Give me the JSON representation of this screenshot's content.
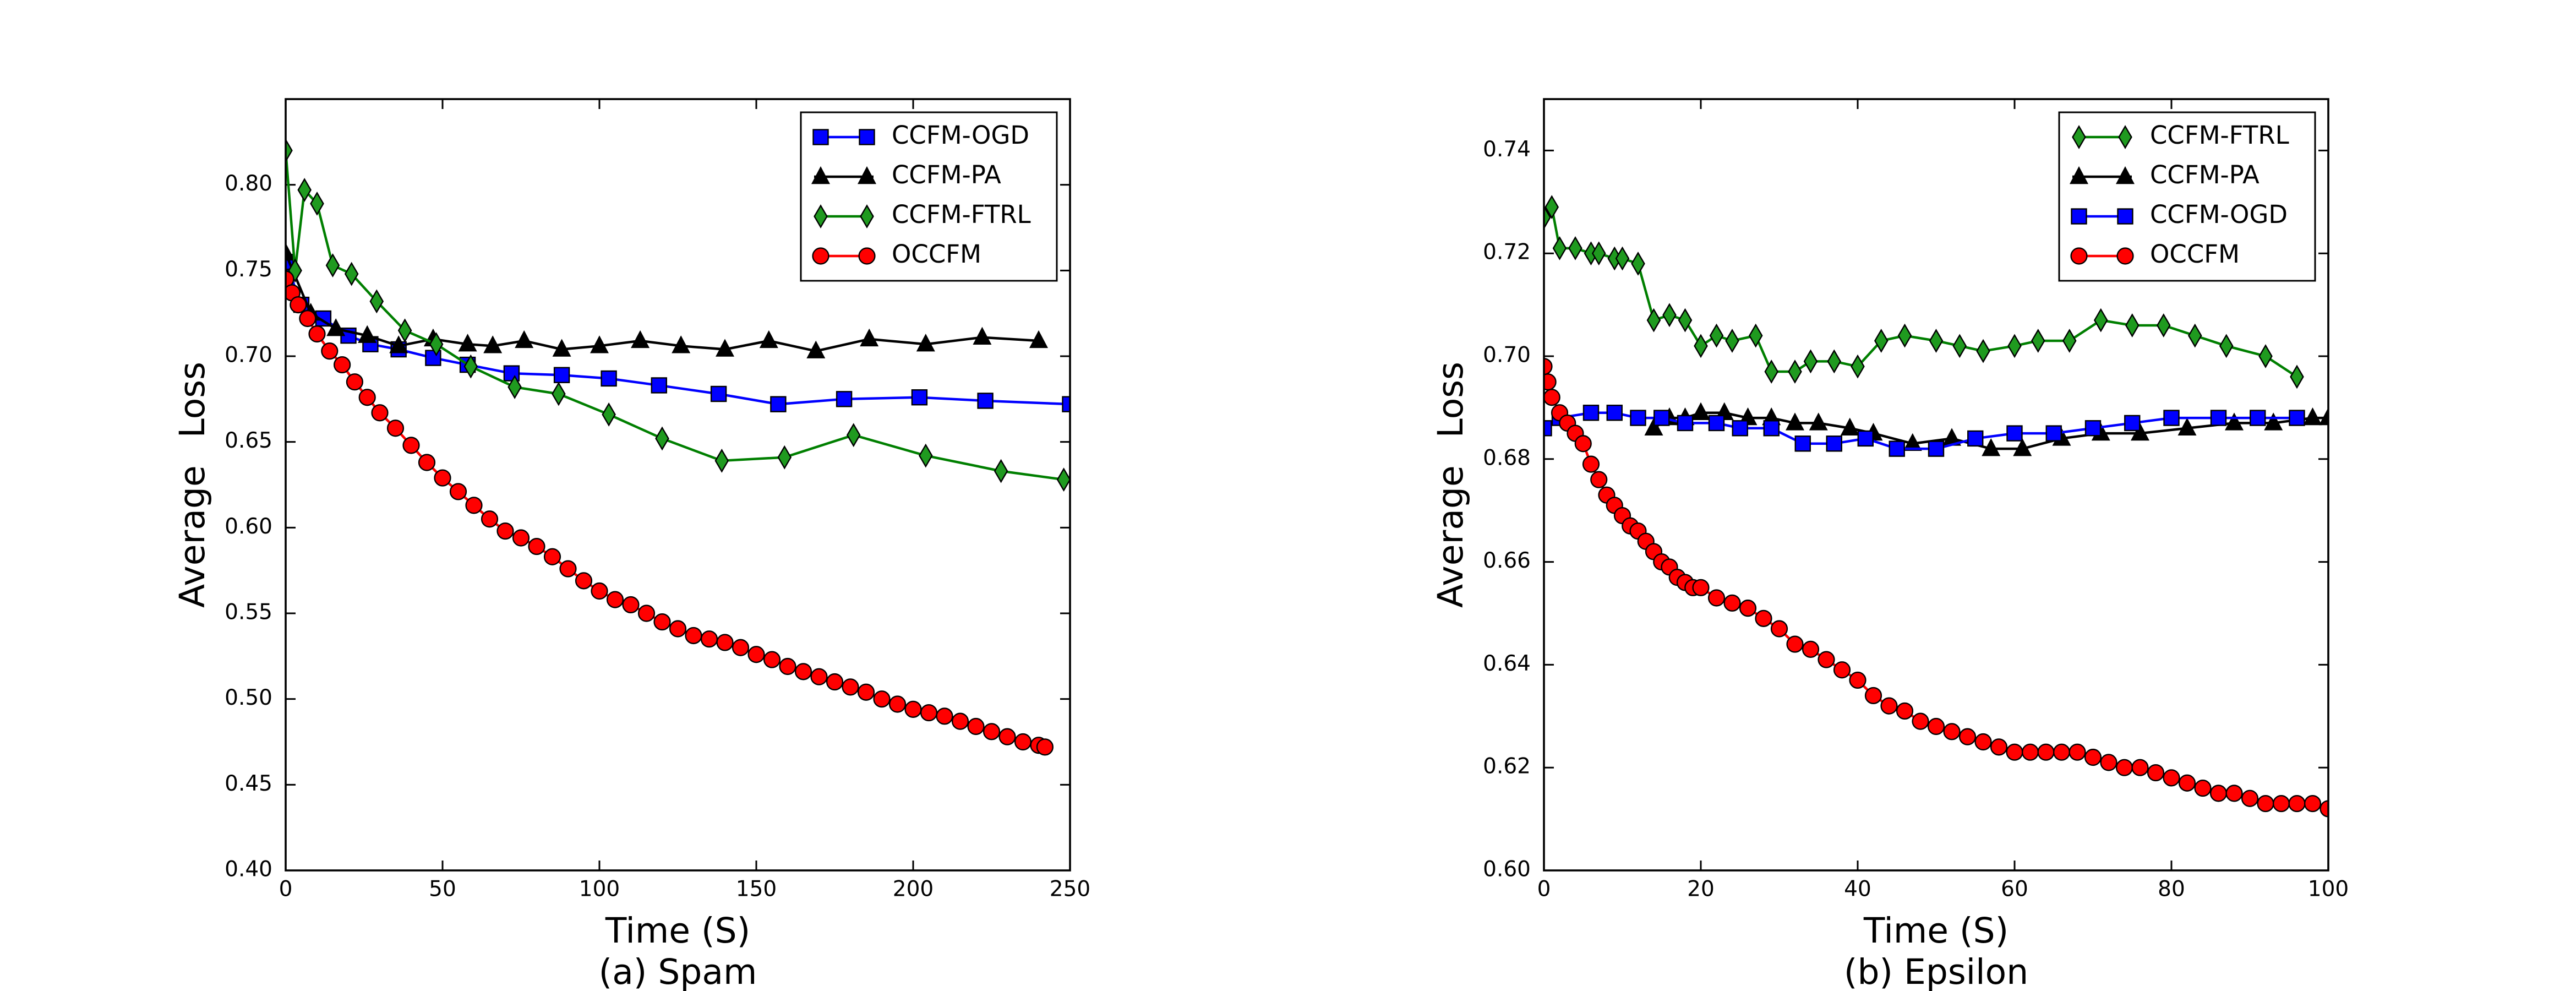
{
  "chart_data": [
    {
      "type": "line",
      "xlabel": "Time (S)",
      "ylabel": "Average Loss",
      "caption": "(a) Spam",
      "xlim": [
        0,
        250
      ],
      "ylim": [
        0.4,
        0.85
      ],
      "xticks": [
        0,
        50,
        100,
        150,
        200,
        250
      ],
      "yticks": [
        {
          "value": 0.4,
          "label": "0.40"
        },
        0.45,
        {
          "value": 0.5,
          "label": "0.50"
        },
        0.55,
        {
          "value": 0.6,
          "label": "0.60"
        },
        0.65,
        {
          "value": 0.7,
          "label": "0.70"
        },
        0.75,
        {
          "value": 0.8,
          "label": "0.80"
        }
      ],
      "legend": "upper right",
      "grid": false,
      "series": [
        {
          "name": "CCFM-OGD",
          "color": "#0000ff",
          "marker": "square",
          "x": [
            0,
            5,
            12,
            20,
            27,
            36,
            47,
            58,
            72,
            88,
            103,
            119,
            138,
            157,
            178,
            202,
            223,
            250
          ],
          "values": [
            0.755,
            0.73,
            0.722,
            0.712,
            0.707,
            0.704,
            0.699,
            0.695,
            0.69,
            0.689,
            0.687,
            0.683,
            0.678,
            0.672,
            0.675,
            0.676,
            0.674,
            0.672
          ]
        },
        {
          "name": "CCFM-PA",
          "color": "#000000",
          "marker": "triangle",
          "x": [
            0,
            8,
            16,
            26,
            36,
            47,
            58,
            66,
            76,
            88,
            100,
            113,
            126,
            140,
            154,
            169,
            186,
            204,
            222,
            240
          ],
          "values": [
            0.76,
            0.725,
            0.716,
            0.712,
            0.706,
            0.71,
            0.707,
            0.706,
            0.709,
            0.704,
            0.706,
            0.709,
            0.706,
            0.704,
            0.709,
            0.703,
            0.71,
            0.707,
            0.711,
            0.709
          ]
        },
        {
          "name": "CCFM-FTRL",
          "color": "#007f00",
          "marker": "diamond",
          "x": [
            0,
            3,
            6,
            10,
            15,
            21,
            29,
            38,
            48,
            59,
            73,
            87,
            103,
            120,
            139,
            159,
            181,
            204,
            228,
            248
          ],
          "values": [
            0.82,
            0.75,
            0.797,
            0.789,
            0.753,
            0.748,
            0.732,
            0.715,
            0.707,
            0.694,
            0.682,
            0.678,
            0.666,
            0.652,
            0.639,
            0.641,
            0.654,
            0.642,
            0.633,
            0.628
          ]
        },
        {
          "name": "OCCFM",
          "color": "#ff0000",
          "marker": "circle",
          "x": [
            0,
            2,
            4,
            7,
            10,
            14,
            18,
            22,
            26,
            30,
            35,
            40,
            45,
            50,
            55,
            60,
            65,
            70,
            75,
            80,
            85,
            90,
            95,
            100,
            105,
            110,
            115,
            120,
            125,
            130,
            135,
            140,
            145,
            150,
            155,
            160,
            165,
            170,
            175,
            180,
            185,
            190,
            195,
            200,
            205,
            210,
            215,
            220,
            225,
            230,
            235,
            240,
            242
          ],
          "values": [
            0.745,
            0.737,
            0.73,
            0.722,
            0.713,
            0.703,
            0.695,
            0.685,
            0.676,
            0.667,
            0.658,
            0.648,
            0.638,
            0.629,
            0.621,
            0.613,
            0.605,
            0.598,
            0.594,
            0.589,
            0.583,
            0.576,
            0.569,
            0.563,
            0.558,
            0.555,
            0.55,
            0.545,
            0.541,
            0.537,
            0.535,
            0.533,
            0.53,
            0.526,
            0.523,
            0.519,
            0.516,
            0.513,
            0.51,
            0.507,
            0.504,
            0.5,
            0.497,
            0.494,
            0.492,
            0.49,
            0.487,
            0.484,
            0.481,
            0.478,
            0.475,
            0.473,
            0.472
          ]
        }
      ]
    },
    {
      "type": "line",
      "xlabel": "Time (S)",
      "ylabel": "Average Loss",
      "caption": "(b) Epsilon",
      "xlim": [
        0,
        100
      ],
      "ylim": [
        0.6,
        0.75
      ],
      "xticks": [
        0,
        20,
        40,
        60,
        80,
        100
      ],
      "yticks": [
        {
          "value": 0.6,
          "label": "0.60"
        },
        0.62,
        0.64,
        0.66,
        0.68,
        {
          "value": 0.7,
          "label": "0.70"
        },
        0.72,
        0.74
      ],
      "legend": "upper right",
      "grid": false,
      "series": [
        {
          "name": "CCFM-FTRL",
          "color": "#007f00",
          "marker": "diamond",
          "x": [
            0,
            1,
            2,
            4,
            6,
            7,
            9,
            10,
            12,
            14,
            16,
            18,
            20,
            22,
            24,
            27,
            29,
            32,
            34,
            37,
            40,
            43,
            46,
            50,
            53,
            56,
            60,
            63,
            67,
            71,
            75,
            79,
            83,
            87,
            92,
            96
          ],
          "values": [
            0.727,
            0.729,
            0.721,
            0.721,
            0.72,
            0.72,
            0.719,
            0.719,
            0.718,
            0.707,
            0.708,
            0.707,
            0.702,
            0.704,
            0.703,
            0.704,
            0.697,
            0.697,
            0.699,
            0.699,
            0.698,
            0.703,
            0.704,
            0.703,
            0.702,
            0.701,
            0.702,
            0.703,
            0.703,
            0.707,
            0.706,
            0.706,
            0.704,
            0.702,
            0.7,
            0.696
          ]
        },
        {
          "name": "CCFM-PA",
          "color": "#000000",
          "marker": "triangle",
          "x": [
            14,
            16,
            18,
            20,
            23,
            26,
            29,
            32,
            35,
            39,
            42,
            47,
            52,
            57,
            61,
            66,
            71,
            76,
            82,
            88,
            93,
            98,
            100
          ],
          "values": [
            0.686,
            0.688,
            0.688,
            0.689,
            0.689,
            0.688,
            0.688,
            0.687,
            0.687,
            0.686,
            0.685,
            0.683,
            0.684,
            0.682,
            0.682,
            0.684,
            0.685,
            0.685,
            0.686,
            0.687,
            0.687,
            0.688,
            0.688
          ]
        },
        {
          "name": "CCFM-OGD",
          "color": "#0000ff",
          "marker": "square",
          "x": [
            0,
            2,
            6,
            9,
            12,
            15,
            18,
            22,
            25,
            29,
            33,
            37,
            41,
            45,
            50,
            55,
            60,
            65,
            70,
            75,
            80,
            86,
            91,
            96
          ],
          "values": [
            0.686,
            0.688,
            0.689,
            0.689,
            0.688,
            0.688,
            0.687,
            0.687,
            0.686,
            0.686,
            0.683,
            0.683,
            0.684,
            0.682,
            0.682,
            0.684,
            0.685,
            0.685,
            0.686,
            0.687,
            0.688,
            0.688,
            0.688,
            0.688
          ]
        },
        {
          "name": "OCCFM",
          "color": "#ff0000",
          "marker": "circle",
          "x": [
            0,
            0.5,
            1,
            2,
            3,
            4,
            5,
            6,
            7,
            8,
            9,
            10,
            11,
            12,
            13,
            14,
            15,
            16,
            17,
            18,
            19,
            20,
            22,
            24,
            26,
            28,
            30,
            32,
            34,
            36,
            38,
            40,
            42,
            44,
            46,
            48,
            50,
            52,
            54,
            56,
            58,
            60,
            62,
            64,
            66,
            68,
            70,
            72,
            74,
            76,
            78,
            80,
            82,
            84,
            86,
            88,
            90,
            92,
            94,
            96,
            98,
            100
          ],
          "values": [
            0.698,
            0.695,
            0.692,
            0.689,
            0.687,
            0.685,
            0.683,
            0.679,
            0.676,
            0.673,
            0.671,
            0.669,
            0.667,
            0.666,
            0.664,
            0.662,
            0.66,
            0.659,
            0.657,
            0.656,
            0.655,
            0.655,
            0.653,
            0.652,
            0.651,
            0.649,
            0.647,
            0.644,
            0.643,
            0.641,
            0.639,
            0.637,
            0.634,
            0.632,
            0.631,
            0.629,
            0.628,
            0.627,
            0.626,
            0.625,
            0.624,
            0.623,
            0.623,
            0.623,
            0.623,
            0.623,
            0.622,
            0.621,
            0.62,
            0.62,
            0.619,
            0.618,
            0.617,
            0.616,
            0.615,
            0.615,
            0.614,
            0.613,
            0.613,
            0.613,
            0.613,
            0.612
          ]
        }
      ]
    }
  ]
}
